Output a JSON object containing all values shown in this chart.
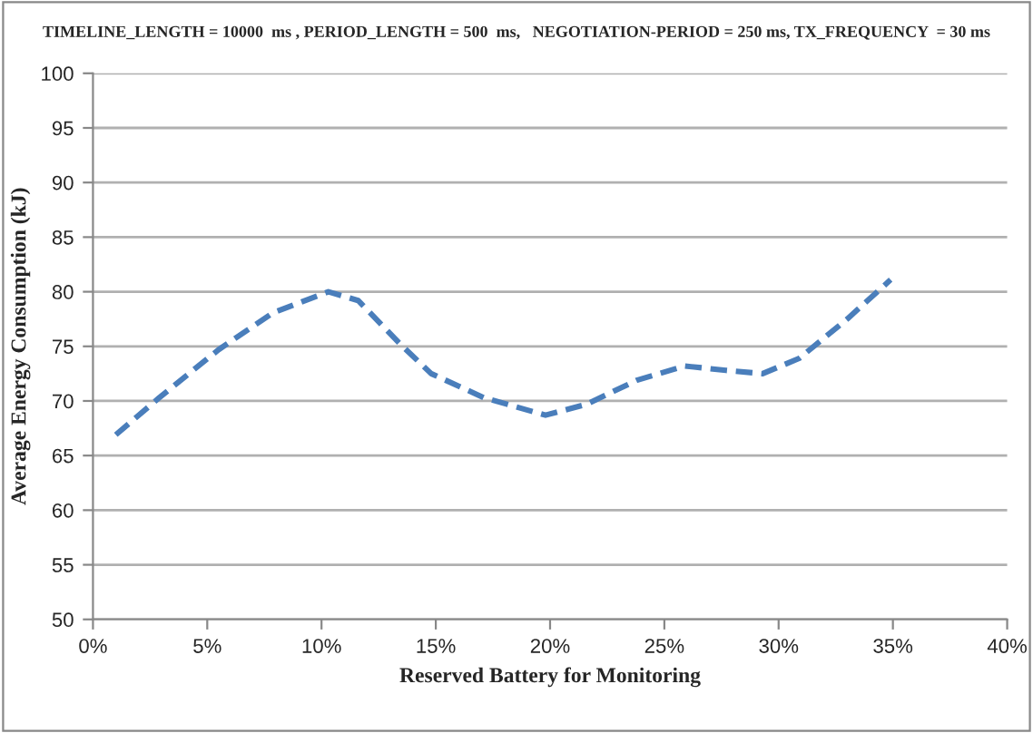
{
  "chart_data": {
    "type": "line",
    "title": "TIMELINE_LENGTH = 10000  ms , PERIOD_LENGTH = 500  ms,   NEGOTIATION-PERIOD = 250 ms, TX_FREQUENCY  = 30 ms",
    "xlabel": "Reserved Battery for Monitoring",
    "ylabel": "Average Energy Consumption (kJ)",
    "series": [
      {
        "color": "#4a7ebb",
        "x": [
          1.0,
          2.9,
          5.5,
          7.9,
          10.3,
          11.6,
          13.4,
          14.8,
          17.1,
          19.8,
          21.6,
          23.8,
          25.9,
          27.7,
          29.3,
          30.9,
          33.0,
          34.9
        ],
        "values": [
          66.9,
          70.3,
          74.7,
          78.1,
          80.0,
          79.2,
          75.3,
          72.5,
          70.3,
          68.7,
          69.7,
          71.9,
          73.2,
          72.8,
          72.5,
          73.9,
          77.5,
          81.1
        ]
      }
    ],
    "xlim": [
      0,
      40
    ],
    "xticks": [
      {
        "value": 0,
        "label": "0%"
      },
      {
        "value": 5,
        "label": "5%"
      },
      {
        "value": 10,
        "label": "10%"
      },
      {
        "value": 15,
        "label": "15%"
      },
      {
        "value": 20,
        "label": "20%"
      },
      {
        "value": 25,
        "label": "25%"
      },
      {
        "value": 30,
        "label": "30%"
      },
      {
        "value": 35,
        "label": "35%"
      },
      {
        "value": 40,
        "label": "40%"
      }
    ],
    "ylim": [
      50,
      100
    ],
    "yticks": [
      50,
      55,
      60,
      65,
      70,
      75,
      80,
      85,
      90,
      95,
      100
    ],
    "grid": "y",
    "line_style": "dashed",
    "marker": "none"
  }
}
